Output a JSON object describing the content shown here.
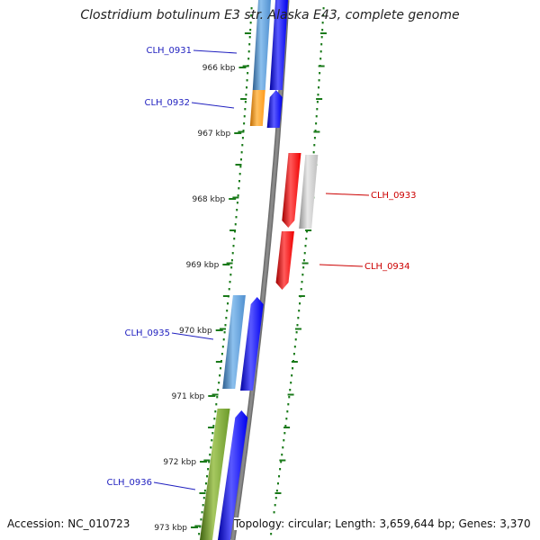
{
  "title": "Clostridium botulinum E3 str. Alaska E43, complete genome",
  "accession": "Accession: NC_010723",
  "topology": "Topology: circular; Length: 3,659,644 bp; Genes: 3,370",
  "colors": {
    "gene_label_forward": "#1f1fbf",
    "gene_label_reverse": "#cc0000",
    "forward_cds": "#0000ee",
    "reverse_cds": "#ee0000",
    "backbone": "#8a8a8a",
    "tick_marks": "#1a7a1a"
  },
  "kbp_ticks": [
    "966 kbp",
    "967 kbp",
    "968 kbp",
    "969 kbp",
    "970 kbp",
    "971 kbp",
    "972 kbp",
    "973 kbp"
  ],
  "genes": [
    {
      "label": "CLH_0931",
      "strand": "forward",
      "feature_color": "#4f8fcf"
    },
    {
      "label": "CLH_0932",
      "strand": "forward",
      "feature_color": "#ff9a1a"
    },
    {
      "label": "CLH_0933",
      "strand": "reverse",
      "feature_color": "#bdbdbd"
    },
    {
      "label": "CLH_0934",
      "strand": "reverse",
      "feature_color": ""
    },
    {
      "label": "CLH_0935",
      "strand": "forward",
      "feature_color": "#4f8fcf"
    },
    {
      "label": "CLH_0936",
      "strand": "forward",
      "feature_color": "#6b9a2a"
    }
  ]
}
